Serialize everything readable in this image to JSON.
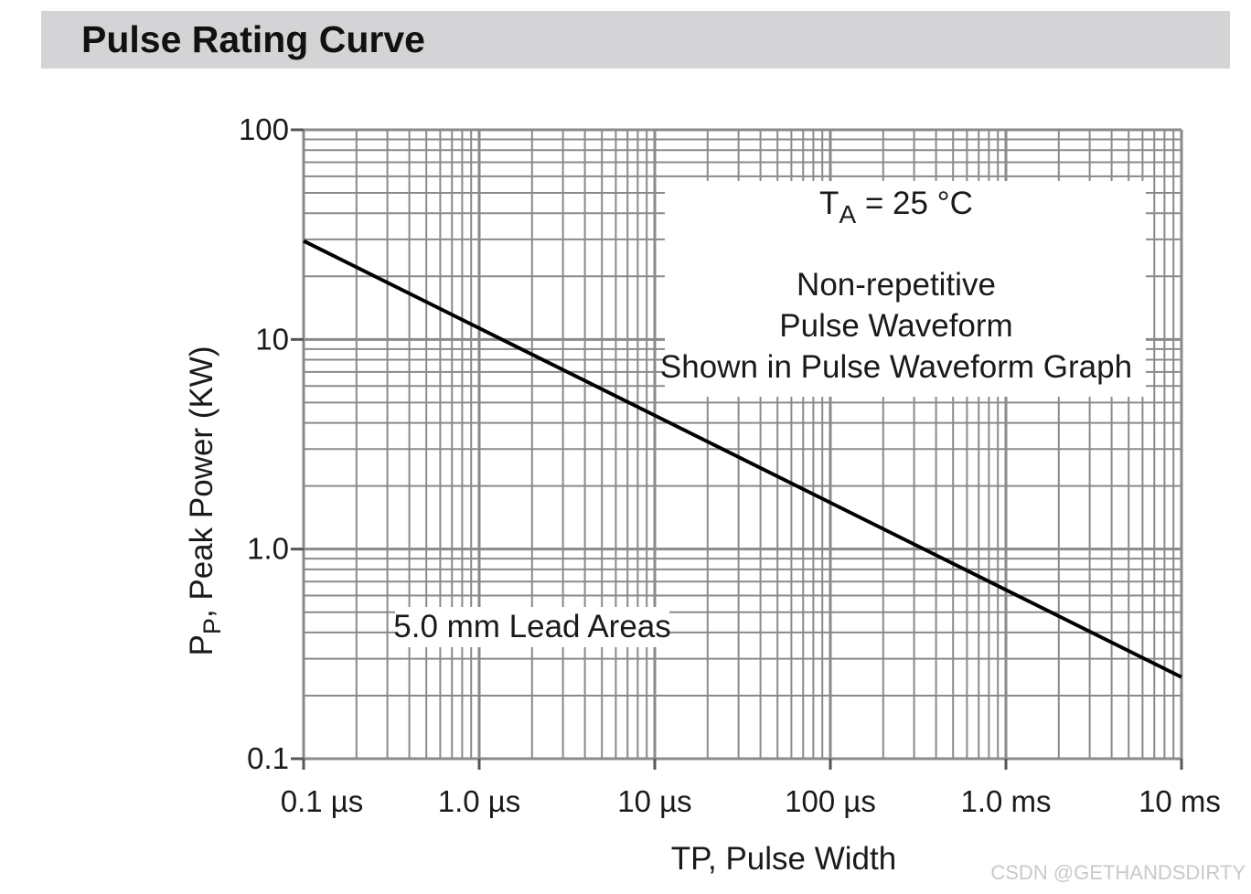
{
  "title": "Pulse Rating Curve",
  "watermark": "CSDN @GETHANDSDIRTY",
  "chart_data": {
    "type": "line",
    "title": "Pulse Rating Curve",
    "xlabel": "TP, Pulse Width",
    "ylabel": {
      "main": "P",
      "sub": "P",
      "rest": ", Peak Power (KW)"
    },
    "x_scale": "log",
    "y_scale": "log",
    "x_unit": "seconds",
    "xlim": [
      1e-07,
      0.01
    ],
    "ylim": [
      0.1,
      100
    ],
    "x_ticks": [
      {
        "value": 1e-07,
        "label": "0.1 µs"
      },
      {
        "value": 1e-06,
        "label": "1.0 µs"
      },
      {
        "value": 1e-05,
        "label": "10 µs"
      },
      {
        "value": 0.0001,
        "label": "100 µs"
      },
      {
        "value": 0.001,
        "label": "1.0 ms"
      },
      {
        "value": 0.01,
        "label": "10 ms"
      }
    ],
    "y_ticks": [
      {
        "value": 100,
        "label": "100"
      },
      {
        "value": 10,
        "label": "10"
      },
      {
        "value": 1,
        "label": "1.0"
      },
      {
        "value": 0.1,
        "label": "0.1"
      }
    ],
    "series": [
      {
        "name": "Peak Power",
        "x": [
          1e-07,
          0.01
        ],
        "y": [
          29.5,
          0.245
        ]
      }
    ],
    "annotations": {
      "condition": {
        "main": "T",
        "sub": "A",
        "rest": " = 25 °C"
      },
      "notes": [
        "Non-repetitive",
        "Pulse Waveform",
        "Shown in Pulse Waveform Graph"
      ],
      "lead": "5.0 mm Lead Areas"
    },
    "grid": true
  },
  "colors": {
    "grid": "#8a8a8a",
    "line": "#000000",
    "header": "#d4d4d6"
  }
}
